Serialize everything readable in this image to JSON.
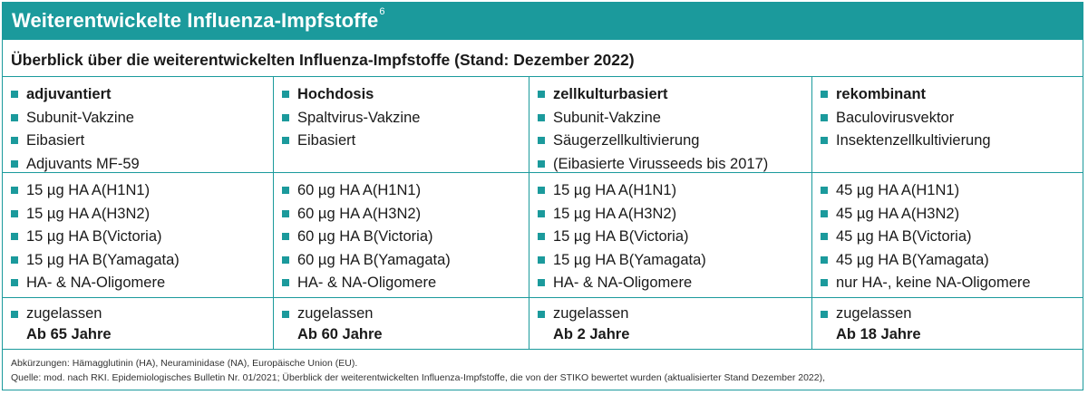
{
  "title": "Weiterentwickelte Influenza-Impfstoffe",
  "title_sup": "6",
  "subtitle": "Überblick über die weiterentwickelten Influenza-Impfstoffe (Stand: Dezember 2022)",
  "accent_color": "#1b9a9c",
  "columns": [
    {
      "heading": "adjuvantiert",
      "type_items": [
        "Subunit-Vakzine",
        "Eibasiert",
        "Adjuvants MF-59"
      ],
      "dose_items": [
        "15 µg HA A(H1N1)",
        "15 µg HA A(H3N2)",
        "15 µg HA B(Victoria)",
        "15 µg HA B(Yamagata)",
        "HA- & NA-Oligomere"
      ],
      "approval_label": "zugelassen",
      "approval_age": "Ab 65 Jahre"
    },
    {
      "heading": "Hochdosis",
      "type_items": [
        "Spaltvirus-Vakzine",
        "Eibasiert"
      ],
      "dose_items": [
        "60 µg HA A(H1N1)",
        "60 µg HA A(H3N2)",
        "60 µg HA B(Victoria)",
        "60 µg HA B(Yamagata)",
        "HA- & NA-Oligomere"
      ],
      "approval_label": "zugelassen",
      "approval_age": "Ab 60 Jahre"
    },
    {
      "heading": "zellkulturbasiert",
      "type_items": [
        "Subunit-Vakzine",
        "Säugerzellkultivierung",
        "(Eibasierte Virusseeds bis 2017)"
      ],
      "dose_items": [
        "15 µg HA A(H1N1)",
        "15 µg HA A(H3N2)",
        "15 µg HA B(Victoria)",
        "15 µg HA B(Yamagata)",
        "HA- & NA-Oligomere"
      ],
      "approval_label": "zugelassen",
      "approval_age": "Ab 2 Jahre"
    },
    {
      "heading": "rekombinant",
      "type_items": [
        "Baculovirusvektor",
        "Insektenzellkultivierung"
      ],
      "dose_items": [
        "45 µg HA A(H1N1)",
        "45 µg HA A(H3N2)",
        "45 µg HA B(Victoria)",
        "45 µg HA B(Yamagata)",
        "nur HA-, keine NA-Oligomere"
      ],
      "approval_label": "zugelassen",
      "approval_age": "Ab 18 Jahre"
    }
  ],
  "footer": {
    "abbreviations": "Abkürzungen: Hämagglutinin (HA), Neuraminidase (NA), Europäische Union (EU).",
    "source": "Quelle: mod. nach RKI. Epidemiologisches Bulletin Nr. 01/2021; Überblick der weiterentwickelten Influenza-Impfstoffe, die von der STIKO bewertet wurden (aktualisierter Stand Dezember 2022),"
  }
}
